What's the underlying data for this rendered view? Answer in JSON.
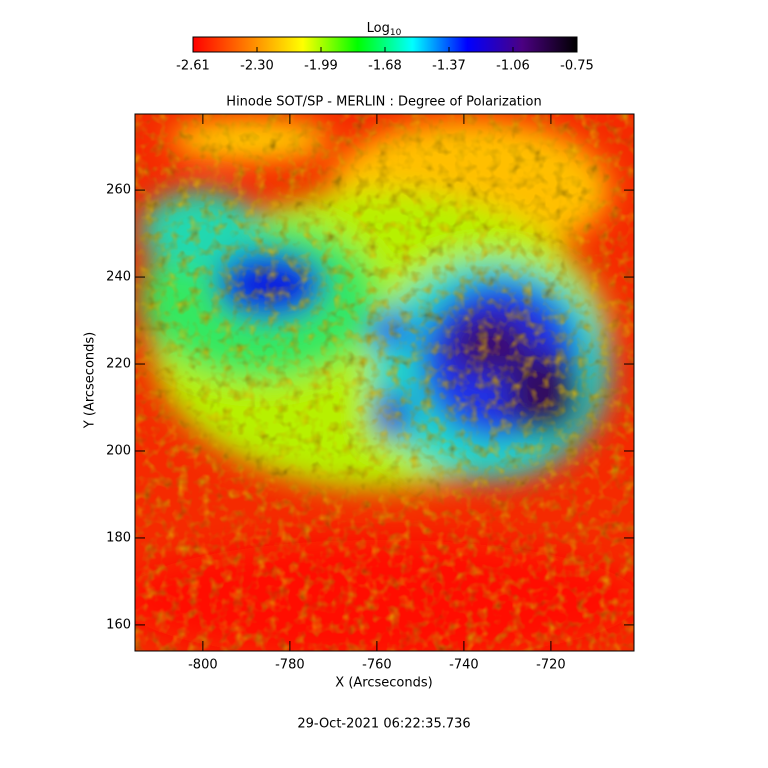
{
  "chart_data": {
    "type": "heatmap",
    "title": "Hinode SOT/SP - MERLIN : Degree of Polarization",
    "x_label": "X (Arcseconds)",
    "y_label": "Y (Arcseconds)",
    "timestamp": "29-Oct-2021 06:22:35.736",
    "xlim": [
      -815.6,
      -700.9
    ],
    "xticks": [
      -800,
      -780,
      -760,
      -740,
      -720
    ],
    "ylim": [
      154.0,
      277.5
    ],
    "yticks": [
      160,
      180,
      200,
      220,
      240,
      260
    ],
    "colorbar": {
      "label": "Log",
      "label_sub": "10",
      "lim": [
        -2.61,
        -0.75
      ],
      "ticks": [
        -2.61,
        {
          "value": -2.3,
          "label": "-2.30"
        },
        -1.99,
        -1.68,
        -1.37,
        -1.06,
        -0.75
      ],
      "colormap": [
        "#ff0000",
        "#ff7f00",
        "#ffff00",
        "#00ff00",
        "#00ffff",
        "#0000ff",
        "#4b0082",
        "#000000"
      ]
    }
  }
}
